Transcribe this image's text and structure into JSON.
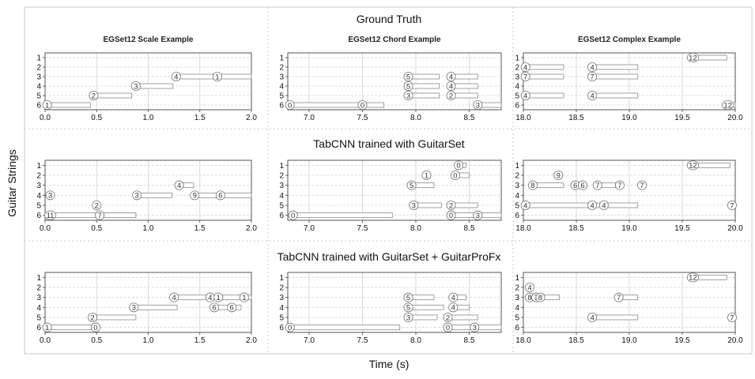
{
  "labels": {
    "y_axis": "Guitar Strings",
    "x_axis": "Time (s)"
  },
  "rows": [
    {
      "title": "Ground Truth"
    },
    {
      "title": "TabCNN trained with GuitarSet"
    },
    {
      "title": "TabCNN trained with GuitarSet + GuitarProFx"
    }
  ],
  "columns": [
    {
      "subtitle": "EGSet12 Scale Example",
      "xlim": [
        0.0,
        2.0
      ],
      "xticks": [
        "0.0",
        "0.5",
        "1.0",
        "1.5",
        "2.0"
      ]
    },
    {
      "subtitle": "EGSet12 Chord Example",
      "xlim": [
        6.8,
        8.8
      ],
      "xticks": [
        "7.0",
        "7.5",
        "8.0",
        "8.5"
      ]
    },
    {
      "subtitle": "EGSet12 Complex Example",
      "xlim": [
        18.0,
        20.0
      ],
      "xticks": [
        "18.0",
        "18.5",
        "19.0",
        "19.5",
        "20.0"
      ]
    }
  ],
  "string_ticks": [
    "1",
    "2",
    "3",
    "4",
    "5",
    "6"
  ],
  "chart_data": {
    "type": "tablature",
    "panels": [
      {
        "row": 0,
        "col": 0,
        "notes": [
          {
            "string": 6,
            "fret": "1",
            "start": 0.02,
            "end": 0.44
          },
          {
            "string": 5,
            "fret": "2",
            "start": 0.47,
            "end": 0.84
          },
          {
            "string": 4,
            "fret": "3",
            "start": 0.88,
            "end": 1.24
          },
          {
            "string": 3,
            "fret": "4",
            "start": 1.27,
            "end": 1.64
          },
          {
            "string": 3,
            "fret": "1",
            "start": 1.67,
            "end": 2.0
          }
        ]
      },
      {
        "row": 0,
        "col": 1,
        "notes": [
          {
            "string": 6,
            "fret": "0",
            "start": 6.82,
            "end": 7.48
          },
          {
            "string": 6,
            "fret": "0",
            "start": 7.5,
            "end": 7.7
          },
          {
            "string": 5,
            "fret": "3",
            "start": 7.93,
            "end": 8.22
          },
          {
            "string": 4,
            "fret": "5",
            "start": 7.93,
            "end": 8.22
          },
          {
            "string": 3,
            "fret": "5",
            "start": 7.93,
            "end": 8.22
          },
          {
            "string": 5,
            "fret": "2",
            "start": 8.33,
            "end": 8.58
          },
          {
            "string": 4,
            "fret": "4",
            "start": 8.33,
            "end": 8.58
          },
          {
            "string": 3,
            "fret": "4",
            "start": 8.33,
            "end": 8.58
          },
          {
            "string": 6,
            "fret": "3",
            "start": 8.58,
            "end": 8.8
          }
        ]
      },
      {
        "row": 0,
        "col": 2,
        "notes": [
          {
            "string": 1,
            "fret": "12",
            "start": 19.6,
            "end": 19.92
          },
          {
            "string": 2,
            "fret": "4",
            "start": 18.02,
            "end": 18.38
          },
          {
            "string": 3,
            "fret": "7",
            "start": 18.02,
            "end": 18.38
          },
          {
            "string": 5,
            "fret": "4",
            "start": 18.02,
            "end": 18.38
          },
          {
            "string": 2,
            "fret": "4",
            "start": 18.65,
            "end": 19.08
          },
          {
            "string": 3,
            "fret": "7",
            "start": 18.65,
            "end": 19.08
          },
          {
            "string": 5,
            "fret": "4",
            "start": 18.65,
            "end": 19.08
          },
          {
            "string": 6,
            "fret": "12",
            "start": 19.93,
            "end": 20.0
          }
        ]
      },
      {
        "row": 1,
        "col": 0,
        "notes": [
          {
            "string": 6,
            "fret": "11",
            "start": 0.05,
            "end": 0.88
          },
          {
            "string": 6,
            "fret": "7",
            "start": 0.53,
            "end": 0.88
          },
          {
            "string": 5,
            "fret": "2",
            "start": 0.5,
            "end": 0.5
          },
          {
            "string": 4,
            "fret": "3",
            "start": 0.05,
            "end": 0.05
          },
          {
            "string": 4,
            "fret": "3",
            "start": 0.89,
            "end": 1.23
          },
          {
            "string": 4,
            "fret": "9",
            "start": 1.45,
            "end": 1.67
          },
          {
            "string": 4,
            "fret": "6",
            "start": 1.7,
            "end": 2.0
          },
          {
            "string": 3,
            "fret": "4",
            "start": 1.3,
            "end": 1.44
          }
        ]
      },
      {
        "row": 1,
        "col": 1,
        "notes": [
          {
            "string": 6,
            "fret": "0",
            "start": 6.85,
            "end": 7.78
          },
          {
            "string": 6,
            "fret": "0",
            "start": 8.33,
            "end": 8.55
          },
          {
            "string": 6,
            "fret": "3",
            "start": 8.58,
            "end": 8.8
          },
          {
            "string": 5,
            "fret": "3",
            "start": 7.98,
            "end": 8.24
          },
          {
            "string": 5,
            "fret": "2",
            "start": 8.33,
            "end": 8.58
          },
          {
            "string": 3,
            "fret": "5",
            "start": 7.96,
            "end": 8.17
          },
          {
            "string": 2,
            "fret": "1",
            "start": 8.1,
            "end": 8.1
          },
          {
            "string": 2,
            "fret": "0",
            "start": 8.37,
            "end": 8.5
          },
          {
            "string": 1,
            "fret": "0",
            "start": 8.4,
            "end": 8.47
          }
        ]
      },
      {
        "row": 1,
        "col": 2,
        "notes": [
          {
            "string": 1,
            "fret": "12",
            "start": 19.6,
            "end": 19.95
          },
          {
            "string": 2,
            "fret": "9",
            "start": 18.33,
            "end": 18.33
          },
          {
            "string": 3,
            "fret": "8",
            "start": 18.09,
            "end": 18.38
          },
          {
            "string": 3,
            "fret": "6",
            "start": 18.49,
            "end": 18.49
          },
          {
            "string": 3,
            "fret": "6",
            "start": 18.56,
            "end": 18.56
          },
          {
            "string": 3,
            "fret": "7",
            "start": 18.7,
            "end": 18.87
          },
          {
            "string": 3,
            "fret": "7",
            "start": 18.91,
            "end": 18.91
          },
          {
            "string": 3,
            "fret": "7",
            "start": 19.12,
            "end": 19.12
          },
          {
            "string": 5,
            "fret": "4",
            "start": 18.02,
            "end": 18.65
          },
          {
            "string": 5,
            "fret": "4",
            "start": 18.65,
            "end": 18.74
          },
          {
            "string": 5,
            "fret": "4",
            "start": 18.76,
            "end": 19.08
          },
          {
            "string": 5,
            "fret": "7",
            "start": 19.97,
            "end": 19.97
          }
        ]
      },
      {
        "row": 2,
        "col": 0,
        "notes": [
          {
            "string": 6,
            "fret": "1",
            "start": 0.02,
            "end": 0.47
          },
          {
            "string": 6,
            "fret": "0",
            "start": 0.49,
            "end": 0.49
          },
          {
            "string": 5,
            "fret": "2",
            "start": 0.46,
            "end": 0.88
          },
          {
            "string": 4,
            "fret": "3",
            "start": 0.86,
            "end": 1.28
          },
          {
            "string": 4,
            "fret": "6",
            "start": 1.64,
            "end": 1.79
          },
          {
            "string": 4,
            "fret": "6",
            "start": 1.81,
            "end": 1.9
          },
          {
            "string": 3,
            "fret": "4",
            "start": 1.25,
            "end": 1.58
          },
          {
            "string": 3,
            "fret": "4",
            "start": 1.6,
            "end": 1.6
          },
          {
            "string": 3,
            "fret": "1",
            "start": 1.68,
            "end": 1.9
          },
          {
            "string": 3,
            "fret": "1",
            "start": 1.93,
            "end": 2.0
          }
        ]
      },
      {
        "row": 2,
        "col": 1,
        "notes": [
          {
            "string": 6,
            "fret": "0",
            "start": 6.82,
            "end": 7.85
          },
          {
            "string": 6,
            "fret": "0",
            "start": 8.3,
            "end": 8.55
          },
          {
            "string": 6,
            "fret": "3",
            "start": 8.55,
            "end": 8.8
          },
          {
            "string": 5,
            "fret": "3",
            "start": 7.93,
            "end": 8.2
          },
          {
            "string": 5,
            "fret": "2",
            "start": 8.3,
            "end": 8.58
          },
          {
            "string": 4,
            "fret": "5",
            "start": 7.93,
            "end": 8.26
          },
          {
            "string": 4,
            "fret": "4",
            "start": 8.35,
            "end": 8.5
          },
          {
            "string": 3,
            "fret": "5",
            "start": 7.93,
            "end": 8.17
          },
          {
            "string": 3,
            "fret": "4",
            "start": 8.35,
            "end": 8.47
          }
        ]
      },
      {
        "row": 2,
        "col": 2,
        "notes": [
          {
            "string": 1,
            "fret": "12",
            "start": 19.6,
            "end": 19.92
          },
          {
            "string": 2,
            "fret": "4",
            "start": 18.06,
            "end": 18.06
          },
          {
            "string": 3,
            "fret": "8",
            "start": 18.06,
            "end": 18.06
          },
          {
            "string": 3,
            "fret": "7",
            "start": 18.12,
            "end": 18.12
          },
          {
            "string": 3,
            "fret": "8",
            "start": 18.16,
            "end": 18.34
          },
          {
            "string": 3,
            "fret": "7",
            "start": 18.9,
            "end": 19.08
          },
          {
            "string": 5,
            "fret": "4",
            "start": 18.65,
            "end": 19.08
          },
          {
            "string": 5,
            "fret": "7",
            "start": 19.97,
            "end": 20.0
          }
        ]
      }
    ]
  }
}
